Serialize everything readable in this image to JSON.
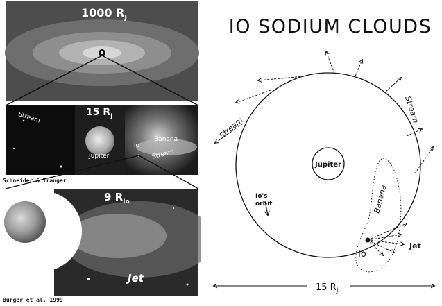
{
  "left_panels": {
    "top": {
      "scale_label": "1000 R",
      "scale_sub": "J"
    },
    "middle": {
      "scale_label": "15 R",
      "scale_sub": "J",
      "stream_left": "Stream",
      "jupiter": "Jupiter",
      "banana": "Banana",
      "io": "Io",
      "stream_right": "Stream"
    },
    "credit_middle": "Schneider & Trauger",
    "bottom": {
      "scale_label": "9 R",
      "scale_sub": "Io",
      "jet": "Jet"
    },
    "credit_bottom": "Burger et al. 1999"
  },
  "diagram": {
    "title": "IO SODIUM CLOUDS",
    "stream_left": "Stream",
    "stream_right": "Stream",
    "jupiter": "Jupiter",
    "banana": "Banana",
    "io_orbit_line1": "Io's",
    "io_orbit_line2": "orbit",
    "io": "Io",
    "jet": "Jet",
    "scale_label": "15 R",
    "scale_sub": "J"
  },
  "colors": {
    "background": "#ffffff",
    "ink": "#111111",
    "image_dark": "#1a1a1a"
  }
}
